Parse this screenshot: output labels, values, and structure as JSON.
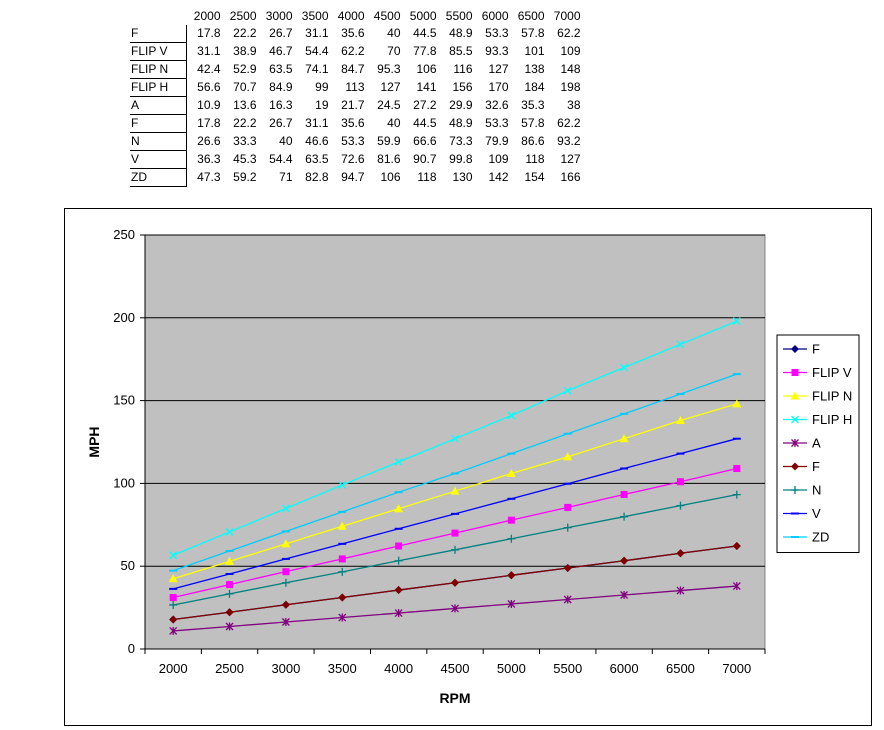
{
  "table": {
    "columns": [
      "2000",
      "2500",
      "3000",
      "3500",
      "4000",
      "4500",
      "5000",
      "5500",
      "6000",
      "6500",
      "7000"
    ],
    "rows": [
      {
        "label": "F",
        "values": [
          "17.8",
          "22.2",
          "26.7",
          "31.1",
          "35.6",
          "40",
          "44.5",
          "48.9",
          "53.3",
          "57.8",
          "62.2"
        ]
      },
      {
        "label": "FLIP V",
        "values": [
          "31.1",
          "38.9",
          "46.7",
          "54.4",
          "62.2",
          "70",
          "77.8",
          "85.5",
          "93.3",
          "101",
          "109"
        ]
      },
      {
        "label": "FLIP N",
        "values": [
          "42.4",
          "52.9",
          "63.5",
          "74.1",
          "84.7",
          "95.3",
          "106",
          "116",
          "127",
          "138",
          "148"
        ]
      },
      {
        "label": "FLIP H",
        "values": [
          "56.6",
          "70.7",
          "84.9",
          "99",
          "113",
          "127",
          "141",
          "156",
          "170",
          "184",
          "198"
        ]
      },
      {
        "label": "A",
        "values": [
          "10.9",
          "13.6",
          "16.3",
          "19",
          "21.7",
          "24.5",
          "27.2",
          "29.9",
          "32.6",
          "35.3",
          "38"
        ]
      },
      {
        "label": "F",
        "values": [
          "17.8",
          "22.2",
          "26.7",
          "31.1",
          "35.6",
          "40",
          "44.5",
          "48.9",
          "53.3",
          "57.8",
          "62.2"
        ]
      },
      {
        "label": "N",
        "values": [
          "26.6",
          "33.3",
          "40",
          "46.6",
          "53.3",
          "59.9",
          "66.6",
          "73.3",
          "79.9",
          "86.6",
          "93.2"
        ]
      },
      {
        "label": "V",
        "values": [
          "36.3",
          "45.3",
          "54.4",
          "63.5",
          "72.6",
          "81.6",
          "90.7",
          "99.8",
          "109",
          "118",
          "127"
        ]
      },
      {
        "label": "ZD",
        "values": [
          "47.3",
          "59.2",
          "71",
          "82.8",
          "94.7",
          "106",
          "118",
          "130",
          "142",
          "154",
          "166"
        ]
      }
    ]
  },
  "chart_data": {
    "type": "line",
    "title": "",
    "xlabel": "RPM",
    "ylabel": "MPH",
    "categories": [
      "2000",
      "2500",
      "3000",
      "3500",
      "4000",
      "4500",
      "5000",
      "5500",
      "6000",
      "6500",
      "7000"
    ],
    "ylim": [
      0,
      250
    ],
    "yticks": [
      0,
      50,
      100,
      150,
      200,
      250
    ],
    "grid": "horizontal",
    "legend_position": "right",
    "plot_background": "#c0c0c0",
    "series": [
      {
        "name": "F",
        "color": "#000080",
        "marker": "diamond",
        "values": [
          17.8,
          22.2,
          26.7,
          31.1,
          35.6,
          40,
          44.5,
          48.9,
          53.3,
          57.8,
          62.2
        ]
      },
      {
        "name": "FLIP V",
        "color": "#ff00ff",
        "marker": "square",
        "values": [
          31.1,
          38.9,
          46.7,
          54.4,
          62.2,
          70,
          77.8,
          85.5,
          93.3,
          101,
          109
        ]
      },
      {
        "name": "FLIP N",
        "color": "#ffff00",
        "marker": "triangle",
        "values": [
          42.4,
          52.9,
          63.5,
          74.1,
          84.7,
          95.3,
          106,
          116,
          127,
          138,
          148
        ]
      },
      {
        "name": "FLIP H",
        "color": "#00ffff",
        "marker": "x",
        "values": [
          56.6,
          70.7,
          84.9,
          99,
          113,
          127,
          141,
          156,
          170,
          184,
          198
        ]
      },
      {
        "name": "A",
        "color": "#800080",
        "marker": "star",
        "values": [
          10.9,
          13.6,
          16.3,
          19,
          21.7,
          24.5,
          27.2,
          29.9,
          32.6,
          35.3,
          38
        ]
      },
      {
        "name": "F",
        "color": "#800000",
        "marker": "diamond",
        "values": [
          17.8,
          22.2,
          26.7,
          31.1,
          35.6,
          40,
          44.5,
          48.9,
          53.3,
          57.8,
          62.2
        ]
      },
      {
        "name": "N",
        "color": "#008080",
        "marker": "plus",
        "values": [
          26.6,
          33.3,
          40,
          46.6,
          53.3,
          59.9,
          66.6,
          73.3,
          79.9,
          86.6,
          93.2
        ]
      },
      {
        "name": "V",
        "color": "#0000ff",
        "marker": "dash",
        "values": [
          36.3,
          45.3,
          54.4,
          63.5,
          72.6,
          81.6,
          90.7,
          99.8,
          109,
          118,
          127
        ]
      },
      {
        "name": "ZD",
        "color": "#00ccff",
        "marker": "dash",
        "values": [
          47.3,
          59.2,
          71,
          82.8,
          94.7,
          106,
          118,
          130,
          142,
          154,
          166
        ]
      }
    ]
  }
}
